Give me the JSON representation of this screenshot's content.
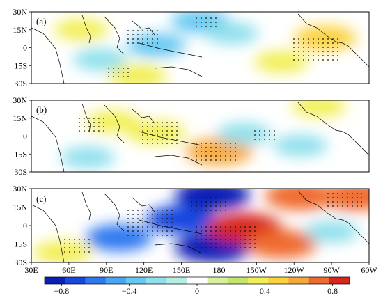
{
  "figure": {
    "panels": [
      {
        "label": "(a)"
      },
      {
        "label": "(b)"
      },
      {
        "label": "(c)"
      }
    ],
    "lat_ticks": [
      "30N",
      "15N",
      "0",
      "15S",
      "30S"
    ],
    "lon_ticks": [
      "30E",
      "60E",
      "90E",
      "120E",
      "150E",
      "180",
      "150W",
      "120W",
      "90W",
      "60W"
    ],
    "colorbar": {
      "tick_labels": [
        "−0.8",
        "−0.4",
        "0",
        "0.4",
        "0.8"
      ],
      "min": -0.9,
      "max": 0.9,
      "colors": [
        "#0a1fb5",
        "#1746e0",
        "#2e78f0",
        "#4aa6f5",
        "#66c8f2",
        "#8fe0ec",
        "#b6eee2",
        "#ffffff",
        "#d9f0a0",
        "#c2e66a",
        "#f2ef55",
        "#fbd23c",
        "#f7a83a",
        "#ef6a2e",
        "#d8261f"
      ]
    }
  },
  "chart_data": [
    {
      "type": "heatmap",
      "panel": "(a)",
      "x_range": [
        "30E",
        "60W"
      ],
      "y_range": [
        "30S",
        "30N"
      ],
      "features": [
        {
          "lon": 165,
          "lat": 22,
          "value": -0.4
        },
        {
          "lon": 130,
          "lat": 2,
          "value": -0.4
        },
        {
          "lon": 85,
          "lat": -10,
          "value": -0.3
        },
        {
          "lon": 70,
          "lat": 15,
          "value": 0.3
        },
        {
          "lon": 265,
          "lat": 8,
          "value": 0.5
        },
        {
          "lon": 230,
          "lat": -12,
          "value": 0.3
        },
        {
          "lon": 115,
          "lat": -24,
          "value": 0.4
        },
        {
          "lon": 190,
          "lat": 12,
          "value": -0.3
        }
      ]
    },
    {
      "type": "heatmap",
      "panel": "(b)",
      "x_range": [
        "30E",
        "60W"
      ],
      "y_range": [
        "30S",
        "30N"
      ],
      "features": [
        {
          "lon": 180,
          "lat": -13,
          "value": 0.6
        },
        {
          "lon": 130,
          "lat": 3,
          "value": 0.4
        },
        {
          "lon": 95,
          "lat": 12,
          "value": 0.3
        },
        {
          "lon": 200,
          "lat": 2,
          "value": -0.3
        },
        {
          "lon": 245,
          "lat": -8,
          "value": -0.3
        },
        {
          "lon": 75,
          "lat": -18,
          "value": -0.3
        },
        {
          "lon": 260,
          "lat": 25,
          "value": 0.3
        }
      ]
    },
    {
      "type": "heatmap",
      "panel": "(c)",
      "x_range": [
        "30E",
        "60W"
      ],
      "y_range": [
        "30S",
        "30N"
      ],
      "features": [
        {
          "lon": 175,
          "lat": 25,
          "value": -0.8
        },
        {
          "lon": 150,
          "lat": 5,
          "value": -0.7
        },
        {
          "lon": 100,
          "lat": -10,
          "value": -0.6
        },
        {
          "lon": 175,
          "lat": -18,
          "value": -0.8
        },
        {
          "lon": 200,
          "lat": -2,
          "value": 0.8
        },
        {
          "lon": 230,
          "lat": -15,
          "value": 0.7
        },
        {
          "lon": 245,
          "lat": 24,
          "value": 0.7
        },
        {
          "lon": 290,
          "lat": 24,
          "value": 0.7
        },
        {
          "lon": 55,
          "lat": -22,
          "value": 0.4
        },
        {
          "lon": 270,
          "lat": -5,
          "value": -0.3
        }
      ]
    }
  ]
}
